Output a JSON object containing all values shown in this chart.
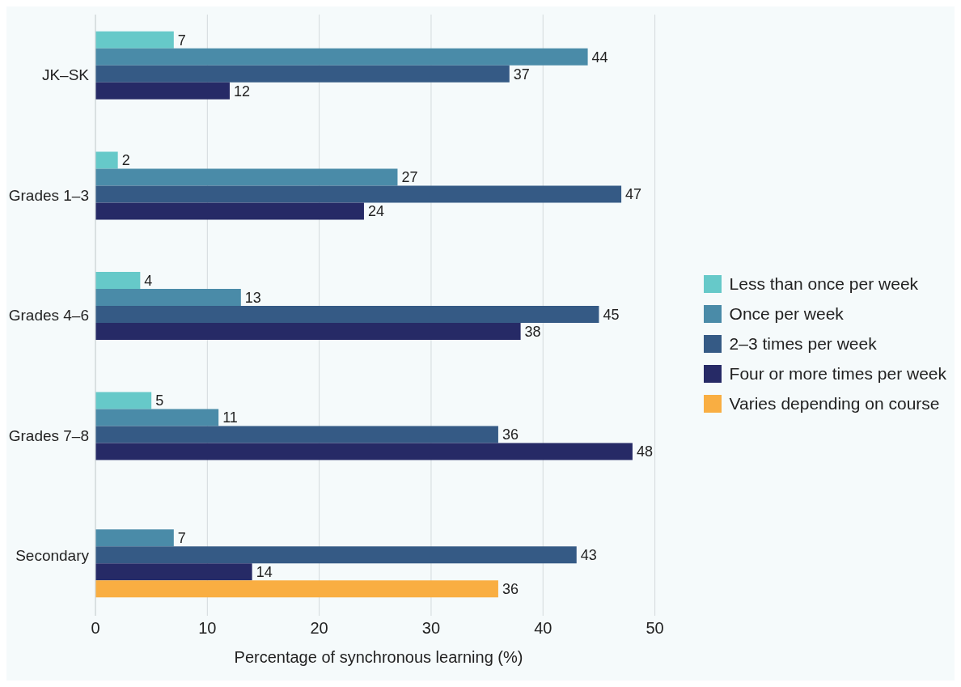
{
  "chart_data": {
    "type": "bar",
    "orientation": "horizontal",
    "xlabel": "Percentage of synchronous learning (%)",
    "categories": [
      "JK–SK",
      "Grades 1–3",
      "Grades 4–6",
      "Grades 7–8",
      "Secondary"
    ],
    "series": [
      {
        "name": "Less than once per week",
        "color": "#66c9c9",
        "values": [
          7,
          2,
          4,
          5,
          null
        ]
      },
      {
        "name": "Once per week",
        "color": "#4a8ba8",
        "values": [
          44,
          27,
          13,
          11,
          7
        ]
      },
      {
        "name": "2–3 times per week",
        "color": "#355a85",
        "values": [
          37,
          47,
          45,
          36,
          43
        ]
      },
      {
        "name": "Four or more times per week",
        "color": "#262a66",
        "values": [
          12,
          24,
          38,
          48,
          14
        ]
      },
      {
        "name": "Varies depending on course",
        "color": "#f9ae42",
        "values": [
          null,
          null,
          null,
          null,
          36
        ]
      }
    ],
    "xlim": [
      0,
      50
    ],
    "xticks": [
      0,
      10,
      20,
      30,
      40,
      50
    ],
    "grid": "x",
    "legend": "right",
    "data_labels": true
  }
}
